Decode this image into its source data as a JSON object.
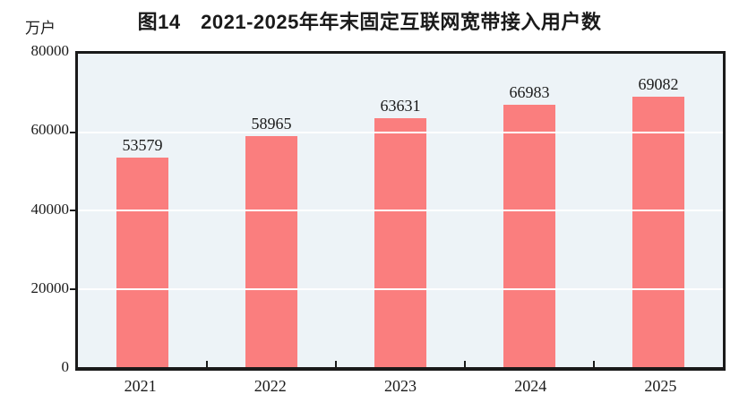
{
  "chart_data": {
    "type": "bar",
    "title": "图14　2021-2025年年末固定互联网宽带接入用户数",
    "unit_label": "万户",
    "categories": [
      "2021",
      "2022",
      "2023",
      "2024",
      "2025"
    ],
    "values": [
      53579,
      58965,
      63631,
      66983,
      69082
    ],
    "ylim": [
      0,
      80000
    ],
    "ytick_interval": 20000,
    "ytick_labels": [
      "0",
      "20000",
      "40000",
      "60000",
      "80000"
    ],
    "grid": true,
    "legend": "none",
    "bar_color": "#fa7e7e",
    "plot_background_color": "#edf3f7",
    "gridline_color": "#ffffff",
    "text_color": "#1a1a1a"
  }
}
